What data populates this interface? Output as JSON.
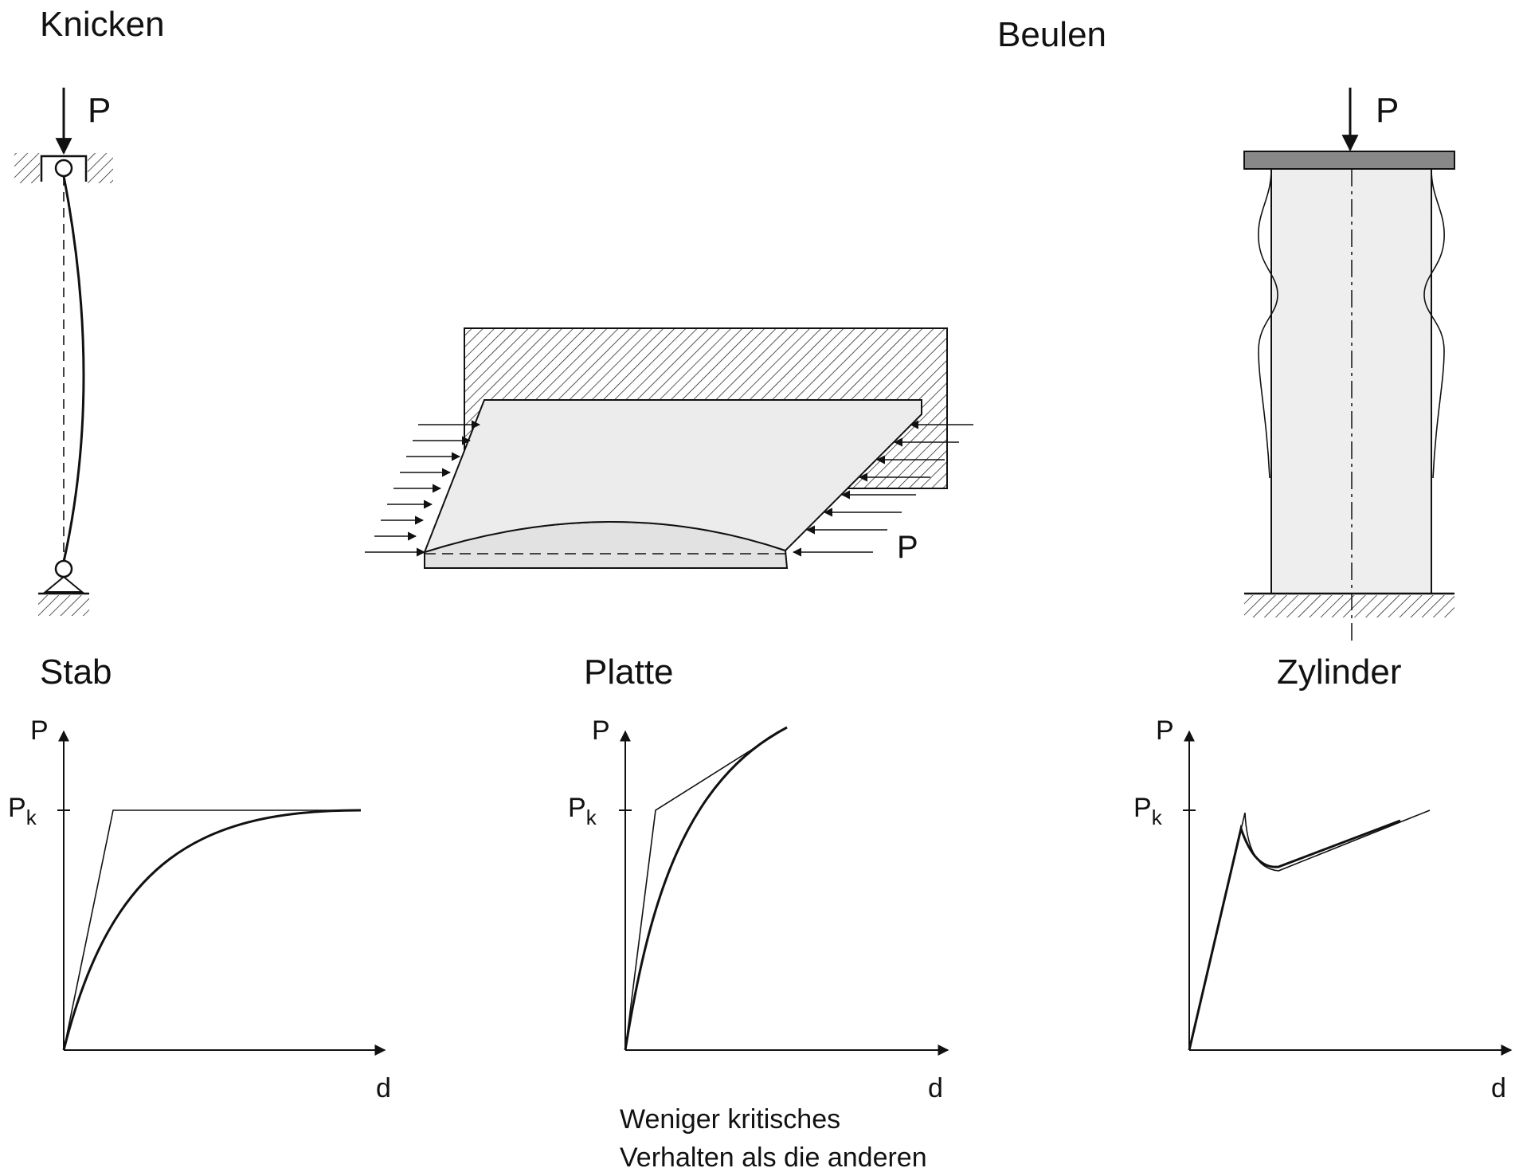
{
  "headers": {
    "left": "Knicken",
    "right": "Beulen"
  },
  "loads": {
    "column": "P",
    "plate": "P",
    "cylinder": "P"
  },
  "captions": {
    "stab": "Stab",
    "platte": "Platte",
    "zylinder": "Zylinder"
  },
  "graphs": [
    {
      "y_axis": "P",
      "critical_main": "P",
      "critical_sub": "k",
      "x_axis": "d"
    },
    {
      "y_axis": "P",
      "critical_main": "P",
      "critical_sub": "k",
      "x_axis": "d"
    },
    {
      "y_axis": "P",
      "critical_main": "P",
      "critical_sub": "k",
      "x_axis": "d"
    }
  ],
  "note": {
    "line1": "Weniger kritisches",
    "line2": "Verhalten als die anderen"
  },
  "colors": {
    "ink": "#111111",
    "plate_fill": "#ececec",
    "cylinder_fill": "#eeeeee",
    "cap_fill": "#888888"
  }
}
